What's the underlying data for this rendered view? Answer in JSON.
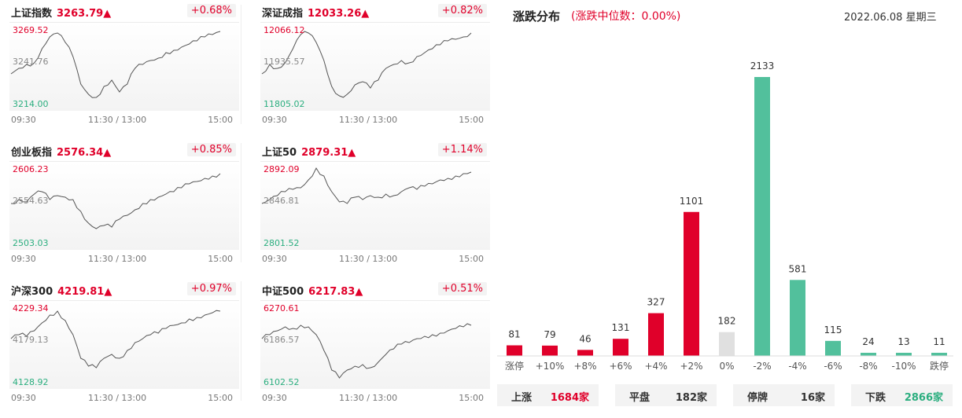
{
  "indices": [
    {
      "name": "上证指数",
      "value": "3263.79▲",
      "pct": "+0.68%",
      "high": "3269.52",
      "mid": "3241.76",
      "low": "3214.00",
      "t0": "09:30",
      "t1": "11:30 / 13:00",
      "t2": "15:00"
    },
    {
      "name": "深证成指",
      "value": "12033.26▲",
      "pct": "+0.82%",
      "high": "12066.12",
      "mid": "11935.57",
      "low": "11805.02",
      "t0": "09:30",
      "t1": "11:30 / 13:00",
      "t2": "15:00"
    },
    {
      "name": "创业板指",
      "value": "2576.34▲",
      "pct": "+0.85%",
      "high": "2606.23",
      "mid": "2554.63",
      "low": "2503.03",
      "t0": "09:30",
      "t1": "11:30 / 13:00",
      "t2": "15:00"
    },
    {
      "name": "上证50",
      "value": "2879.31▲",
      "pct": "+1.14%",
      "high": "2892.09",
      "mid": "2846.81",
      "low": "2801.52",
      "t0": "09:30",
      "t1": "11:30 / 13:00",
      "t2": "15:00"
    },
    {
      "name": "沪深300",
      "value": "4219.81▲",
      "pct": "+0.97%",
      "high": "4229.34",
      "mid": "4179.13",
      "low": "4128.92",
      "t0": "09:30",
      "t1": "11:30 / 13:00",
      "t2": "15:00"
    },
    {
      "name": "中证500",
      "value": "6217.83▲",
      "pct": "+0.51%",
      "high": "6270.61",
      "mid": "6186.57",
      "low": "6102.52",
      "t0": "09:30",
      "t1": "11:30 / 13:00",
      "t2": "15:00"
    }
  ],
  "distribution": {
    "title": "涨跌分布",
    "subtitle": "(涨跌中位数：0.00%)",
    "date": "2022.06.08 星期三"
  },
  "chart_data": {
    "type": "bar",
    "categories": [
      "涨停",
      "+10%",
      "+8%",
      "+6%",
      "+4%",
      "+2%",
      "0%",
      "-2%",
      "-4%",
      "-6%",
      "-8%",
      "-10%",
      "跌停"
    ],
    "values": [
      81,
      79,
      46,
      131,
      327,
      1101,
      182,
      2133,
      581,
      115,
      24,
      13,
      11
    ],
    "colors": [
      "#e0002a",
      "#e0002a",
      "#e0002a",
      "#e0002a",
      "#e0002a",
      "#e0002a",
      "#e0e0e0",
      "#52c09c",
      "#52c09c",
      "#52c09c",
      "#52c09c",
      "#52c09c",
      "#52c09c"
    ]
  },
  "summary": [
    {
      "label": "上涨",
      "value": "1684家",
      "color": "#e0002a"
    },
    {
      "label": "平盘",
      "value": "182家",
      "color": "#333333"
    },
    {
      "label": "停牌",
      "value": "16家",
      "color": "#333333"
    },
    {
      "label": "下跌",
      "value": "2866家",
      "color": "#2bae7f"
    }
  ]
}
